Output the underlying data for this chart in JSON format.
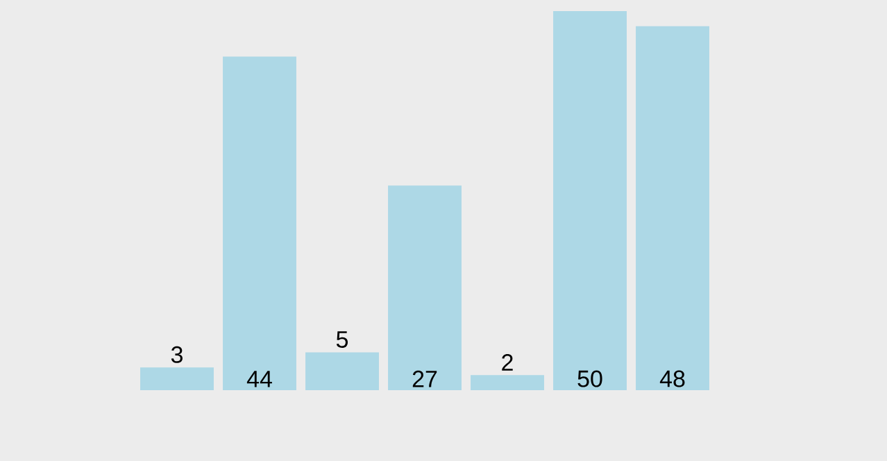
{
  "chart_data": {
    "type": "bar",
    "categories": [
      null,
      null,
      null,
      null,
      null,
      null,
      null
    ],
    "values": [
      3,
      44,
      5,
      27,
      2,
      50,
      48
    ],
    "color": "#add8e6",
    "data_labels": true
  }
}
